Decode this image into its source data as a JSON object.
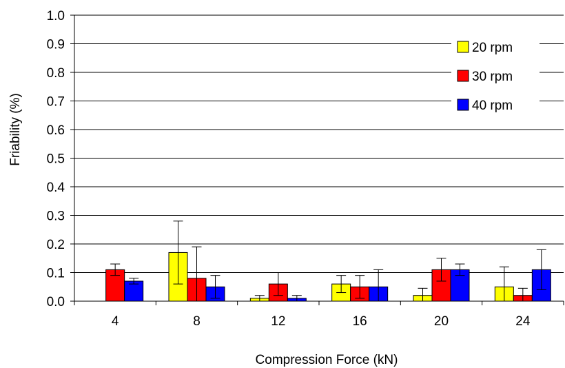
{
  "chart_data": {
    "type": "bar",
    "title": "",
    "xlabel": "Compression Force (kN)",
    "ylabel": "Friability (%)",
    "ylim": [
      0,
      1.0
    ],
    "ytick_step": 0.1,
    "grid": "horizontal",
    "legend_position": "top-right",
    "categories": [
      "4",
      "8",
      "12",
      "16",
      "20",
      "24"
    ],
    "series": [
      {
        "name": "20 rpm",
        "color": "#ffff00",
        "values": [
          0.0,
          0.17,
          0.01,
          0.06,
          0.02,
          0.05
        ],
        "errors": [
          0.0,
          0.11,
          0.01,
          0.03,
          0.025,
          0.07
        ]
      },
      {
        "name": "30 rpm",
        "color": "#ff0000",
        "values": [
          0.11,
          0.08,
          0.06,
          0.05,
          0.11,
          0.02
        ],
        "errors": [
          0.02,
          0.11,
          0.04,
          0.04,
          0.04,
          0.025
        ]
      },
      {
        "name": "40 rpm",
        "color": "#0000ff",
        "values": [
          0.07,
          0.05,
          0.01,
          0.05,
          0.11,
          0.11
        ],
        "errors": [
          0.01,
          0.04,
          0.01,
          0.06,
          0.02,
          0.07
        ]
      }
    ]
  }
}
